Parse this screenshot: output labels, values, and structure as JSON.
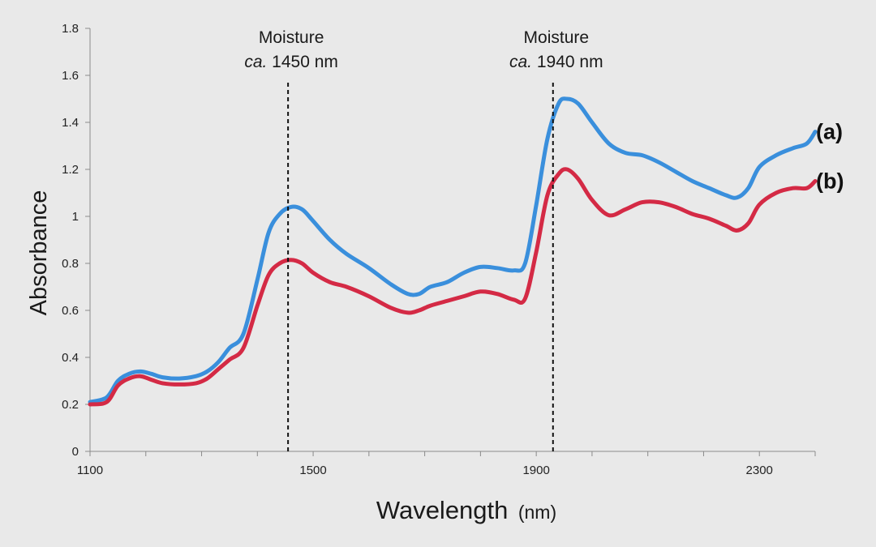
{
  "chart_data": {
    "type": "line",
    "xlabel": "Wavelength",
    "xlabel_unit": "(nm)",
    "ylabel": "Absorbance",
    "xlim": [
      1100,
      2400
    ],
    "ylim": [
      0,
      1.8
    ],
    "xticks": [
      1100,
      1500,
      1900,
      2300
    ],
    "yticks": [
      0,
      0.2,
      0.4,
      0.6,
      0.8,
      1,
      1.2,
      1.4,
      1.6,
      1.8
    ],
    "ytick_labels": [
      "0",
      "0.2",
      "0.4",
      "0.6",
      "0.8",
      "1",
      "1.2",
      "1.4",
      "1.6",
      "1.8"
    ],
    "grid": false,
    "annotations": [
      {
        "x": 1455,
        "line1": "Moisture",
        "line2_prefix": "ca.",
        "line2_rest": " 1450 nm"
      },
      {
        "x": 1930,
        "line1": "Moisture",
        "line2_prefix": "ca.",
        "line2_rest": " 1940 nm"
      }
    ],
    "series": [
      {
        "name": "(a)",
        "color": "#3a8fdc",
        "points": [
          [
            1100,
            0.21
          ],
          [
            1130,
            0.23
          ],
          [
            1150,
            0.3
          ],
          [
            1170,
            0.33
          ],
          [
            1190,
            0.34
          ],
          [
            1210,
            0.33
          ],
          [
            1230,
            0.315
          ],
          [
            1260,
            0.31
          ],
          [
            1290,
            0.32
          ],
          [
            1310,
            0.34
          ],
          [
            1330,
            0.38
          ],
          [
            1350,
            0.44
          ],
          [
            1375,
            0.5
          ],
          [
            1400,
            0.73
          ],
          [
            1420,
            0.93
          ],
          [
            1440,
            1.01
          ],
          [
            1460,
            1.04
          ],
          [
            1480,
            1.03
          ],
          [
            1500,
            0.98
          ],
          [
            1530,
            0.9
          ],
          [
            1560,
            0.84
          ],
          [
            1600,
            0.78
          ],
          [
            1640,
            0.71
          ],
          [
            1670,
            0.67
          ],
          [
            1690,
            0.67
          ],
          [
            1710,
            0.7
          ],
          [
            1740,
            0.72
          ],
          [
            1770,
            0.76
          ],
          [
            1800,
            0.785
          ],
          [
            1830,
            0.78
          ],
          [
            1860,
            0.77
          ],
          [
            1880,
            0.8
          ],
          [
            1900,
            1.05
          ],
          [
            1920,
            1.33
          ],
          [
            1940,
            1.48
          ],
          [
            1955,
            1.5
          ],
          [
            1975,
            1.48
          ],
          [
            2000,
            1.4
          ],
          [
            2030,
            1.31
          ],
          [
            2060,
            1.27
          ],
          [
            2090,
            1.26
          ],
          [
            2120,
            1.23
          ],
          [
            2150,
            1.19
          ],
          [
            2180,
            1.15
          ],
          [
            2210,
            1.12
          ],
          [
            2240,
            1.09
          ],
          [
            2260,
            1.08
          ],
          [
            2280,
            1.12
          ],
          [
            2300,
            1.21
          ],
          [
            2330,
            1.26
          ],
          [
            2360,
            1.29
          ],
          [
            2385,
            1.31
          ],
          [
            2400,
            1.36
          ]
        ]
      },
      {
        "name": "(b)",
        "color": "#d42a45",
        "points": [
          [
            1100,
            0.2
          ],
          [
            1130,
            0.21
          ],
          [
            1150,
            0.28
          ],
          [
            1170,
            0.31
          ],
          [
            1190,
            0.32
          ],
          [
            1210,
            0.305
          ],
          [
            1230,
            0.29
          ],
          [
            1260,
            0.285
          ],
          [
            1290,
            0.29
          ],
          [
            1310,
            0.31
          ],
          [
            1330,
            0.35
          ],
          [
            1350,
            0.39
          ],
          [
            1375,
            0.44
          ],
          [
            1400,
            0.62
          ],
          [
            1420,
            0.75
          ],
          [
            1440,
            0.8
          ],
          [
            1460,
            0.815
          ],
          [
            1480,
            0.8
          ],
          [
            1500,
            0.76
          ],
          [
            1530,
            0.72
          ],
          [
            1560,
            0.7
          ],
          [
            1600,
            0.66
          ],
          [
            1640,
            0.61
          ],
          [
            1670,
            0.59
          ],
          [
            1690,
            0.6
          ],
          [
            1710,
            0.62
          ],
          [
            1740,
            0.64
          ],
          [
            1770,
            0.66
          ],
          [
            1800,
            0.68
          ],
          [
            1830,
            0.67
          ],
          [
            1860,
            0.645
          ],
          [
            1880,
            0.65
          ],
          [
            1900,
            0.85
          ],
          [
            1920,
            1.09
          ],
          [
            1940,
            1.18
          ],
          [
            1955,
            1.2
          ],
          [
            1975,
            1.16
          ],
          [
            2000,
            1.07
          ],
          [
            2030,
            1.005
          ],
          [
            2060,
            1.03
          ],
          [
            2090,
            1.06
          ],
          [
            2120,
            1.06
          ],
          [
            2150,
            1.04
          ],
          [
            2180,
            1.01
          ],
          [
            2210,
            0.99
          ],
          [
            2240,
            0.96
          ],
          [
            2260,
            0.94
          ],
          [
            2280,
            0.97
          ],
          [
            2300,
            1.05
          ],
          [
            2330,
            1.1
          ],
          [
            2360,
            1.12
          ],
          [
            2385,
            1.12
          ],
          [
            2400,
            1.15
          ]
        ]
      }
    ]
  }
}
